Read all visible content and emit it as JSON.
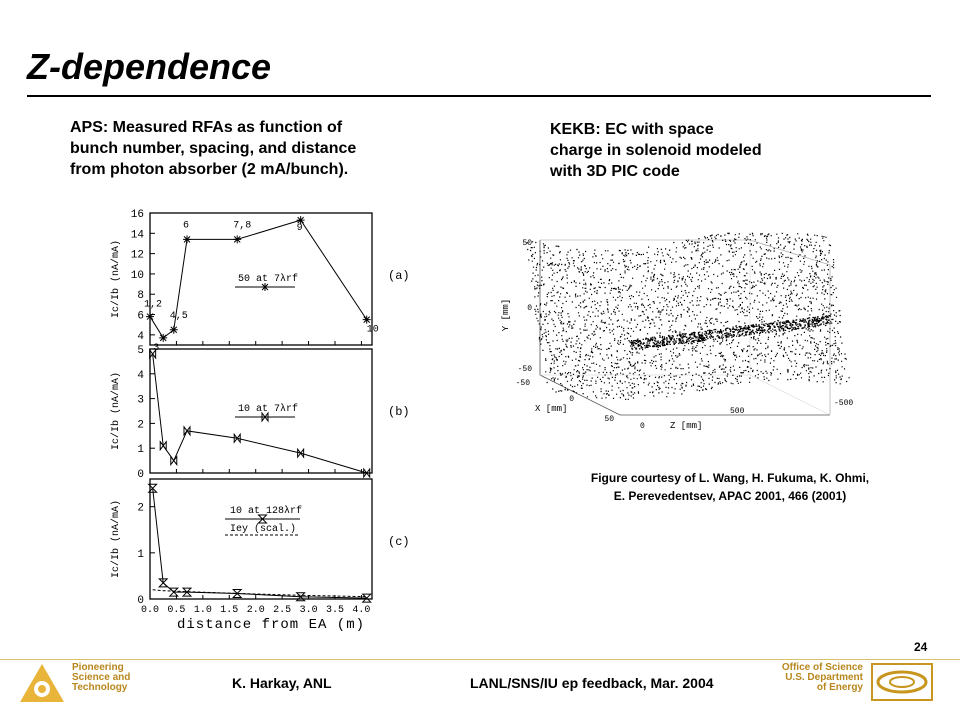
{
  "slide": {
    "title": "Z-dependence",
    "page_number": "24"
  },
  "aps": {
    "caption_line1": "APS: Measured RFAs as function of",
    "caption_line2": "bunch number, spacing, and distance",
    "caption_line3": "from photon absorber (2 mA/bunch).",
    "xlabel": "distance from EA (m)",
    "xticks": [
      "0.0",
      "0.5",
      "1.0",
      "1.5",
      "2.0",
      "2.5",
      "3.0",
      "3.5",
      "4.0"
    ],
    "panel_a": {
      "tag": "(a)",
      "ylabel": "Ic/Ib (nA/mA)",
      "yticks": [
        "4",
        "6",
        "8",
        "10",
        "12",
        "14",
        "16"
      ],
      "legend": "50 at 7λrf",
      "point_labels": [
        "1,2",
        "3",
        "4,5",
        "6",
        "7,8",
        "9",
        "10"
      ]
    },
    "panel_b": {
      "tag": "(b)",
      "ylabel": "Ic/Ib (nA/mA)",
      "yticks": [
        "0",
        "1",
        "2",
        "3",
        "4",
        "5"
      ],
      "legend": "10 at 7λrf"
    },
    "panel_c": {
      "tag": "(c)",
      "ylabel": "Ic/Ib (nA/mA)",
      "yticks": [
        "0",
        "1",
        "2"
      ],
      "legend": "10 at 128λrf",
      "legend2": "Iey (scal.)"
    }
  },
  "kekb": {
    "caption_line1": "KEKB: EC with space",
    "caption_line2": "charge in solenoid modeled",
    "caption_line3": "with 3D PIC code",
    "y_axis_label": "Y [mm]",
    "x_axis_label": "X [mm]",
    "z_axis_label": "Z [mm]",
    "y_ticks": [
      "50",
      "0",
      "-50"
    ],
    "x_ticks": [
      "-50",
      "0",
      "50"
    ],
    "z_ticks": [
      "0",
      "500",
      "-500"
    ],
    "credit_line1": "Figure courtesy of L. Wang, H. Fukuma, K. Ohmi,",
    "credit_line2": "E. Perevedentsev, APAC 2001, 466 (2001)"
  },
  "footer": {
    "org_line1": "Pioneering",
    "org_line2": "Science and",
    "org_line3": "Technology",
    "author": "K. Harkay, ANL",
    "event": "LANL/SNS/IU ep feedback, Mar. 2004",
    "doe_line1": "Office of Science",
    "doe_line2": "U.S. Department",
    "doe_line3": "of Energy"
  },
  "colors": {
    "footer_accent": "#b8871d",
    "logo_anl": "#e8b53a",
    "logo_doe": "#c8961e"
  },
  "chart_data": [
    {
      "type": "line",
      "panel": "a",
      "ylim": [
        3,
        16
      ],
      "xlim": [
        0,
        4.2
      ],
      "x": [
        0.0,
        0.25,
        0.45,
        0.7,
        1.65,
        2.85,
        4.1
      ],
      "values": [
        5.8,
        3.7,
        4.5,
        13.4,
        13.4,
        15.3,
        5.5
      ],
      "marker": "asterisk"
    },
    {
      "type": "line",
      "panel": "b",
      "ylim": [
        0,
        5
      ],
      "xlim": [
        0,
        4.2
      ],
      "x": [
        0.05,
        0.25,
        0.45,
        0.7,
        1.65,
        2.85,
        4.1
      ],
      "values": [
        4.8,
        1.1,
        0.5,
        1.7,
        1.4,
        0.8,
        0.0
      ],
      "marker": "bowtie"
    },
    {
      "type": "line",
      "panel": "c",
      "ylim": [
        0,
        2.6
      ],
      "xlim": [
        0,
        4.2
      ],
      "series": [
        {
          "x": [
            0.05,
            0.25,
            0.45,
            0.7,
            1.65,
            2.85,
            4.1
          ],
          "values": [
            2.4,
            0.35,
            0.15,
            0.15,
            0.12,
            0.05,
            0.02
          ],
          "marker": "hourglass"
        },
        {
          "x": [
            0.05,
            0.25,
            0.45,
            0.7,
            1.65,
            2.85,
            4.1
          ],
          "values": [
            0.2,
            0.18,
            0.17,
            0.16,
            0.12,
            0.08,
            0.05
          ],
          "style": "dashed"
        }
      ]
    }
  ]
}
